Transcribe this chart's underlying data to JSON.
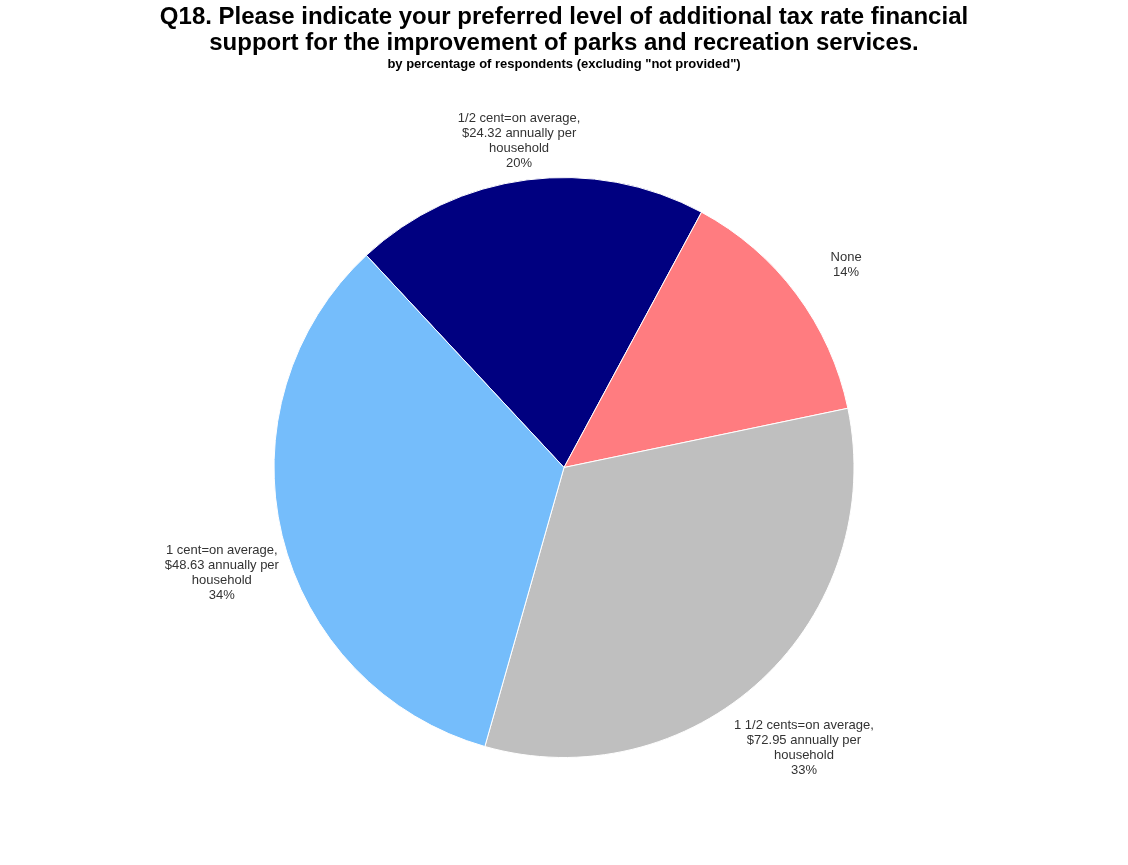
{
  "chart_data": {
    "type": "pie",
    "title": "Q18.  Please indicate your preferred level of additional tax rate financial support for the improvement of parks and recreation services.",
    "subtitle": "by percentage of respondents (excluding \"not provided\")",
    "categories": [
      "1/2 cent=on average, $24.32 annually per household",
      "None",
      "1 1/2 cents=on average, $72.95 annually per household",
      "1 cent=on average, $48.63 annually per household"
    ],
    "values": [
      20,
      14,
      33,
      34
    ],
    "value_labels": [
      "20%",
      "14%",
      "33%",
      "34%"
    ],
    "colors": [
      "#000080",
      "#ff7c80",
      "#bfbfbf",
      "#75bdfb"
    ]
  }
}
